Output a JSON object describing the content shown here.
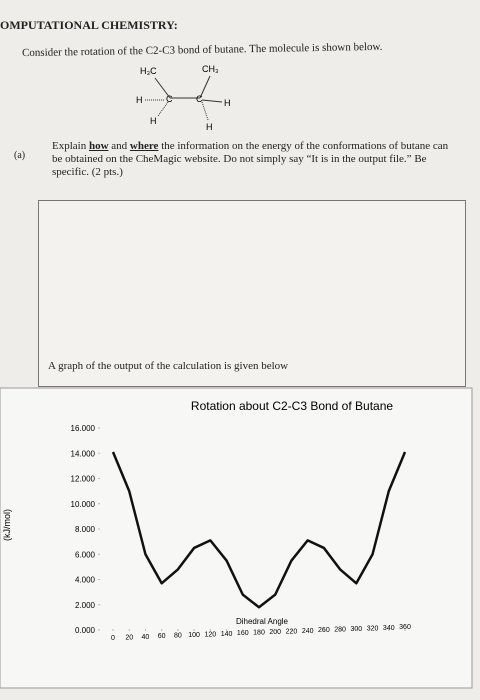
{
  "header": {
    "title": "OMPUTATIONAL CHEMISTRY:"
  },
  "intro": "Consider the rotation of the C2-C3 bond of butane. The molecule is shown below.",
  "molecule": {
    "left_methyl": "H₃C",
    "right_methyl": "CH₃",
    "left_carbon": "C",
    "right_carbon": "C",
    "h1": "H",
    "h2": "H",
    "h3": "H",
    "h4": "H"
  },
  "question": {
    "label": "(a)",
    "text_1": "Explain ",
    "emph_1": "how",
    "text_2": " and ",
    "emph_2": "where",
    "text_3": " the information on the energy of the conformations of butane can be obtained on the CheMagic website. Do not simply say “It is in the output file.” Be specific. (2 pts.)"
  },
  "graph_caption": "A graph of the output of the calculation is given below",
  "chart_data": {
    "type": "line",
    "title": "Rotation about C2-C3 Bond of Butane",
    "x_label": "Dihedral Angle",
    "y_label": "(kJ/mol)",
    "x": [
      0,
      20,
      40,
      60,
      80,
      100,
      120,
      140,
      160,
      180,
      200,
      220,
      240,
      260,
      280,
      300,
      320,
      340,
      360
    ],
    "values": [
      14.1,
      11,
      6,
      3.7,
      4.8,
      6.5,
      7.1,
      5.5,
      2.8,
      1.8,
      2.8,
      5.5,
      7.1,
      6.5,
      4.8,
      3.7,
      6,
      11,
      14.1
    ],
    "color": "#111111",
    "xlim": [
      0,
      360
    ],
    "ylim": [
      0,
      16
    ],
    "xticks": [
      0,
      20,
      40,
      60,
      80,
      100,
      120,
      140,
      160,
      180,
      200,
      220,
      240,
      260,
      280,
      300,
      320,
      340,
      360
    ],
    "yticks": [
      {
        "value": 0,
        "label": "0.000"
      },
      {
        "value": 2,
        "label": "2.000"
      },
      {
        "value": 4,
        "label": "4.000"
      },
      {
        "value": 6,
        "label": "6.000"
      },
      {
        "value": 8,
        "label": "8.000"
      },
      {
        "value": 10,
        "label": "10.000"
      },
      {
        "value": 12,
        "label": "12.000"
      },
      {
        "value": 14,
        "label": "14.000"
      },
      {
        "value": 16,
        "label": "16.000"
      }
    ]
  }
}
